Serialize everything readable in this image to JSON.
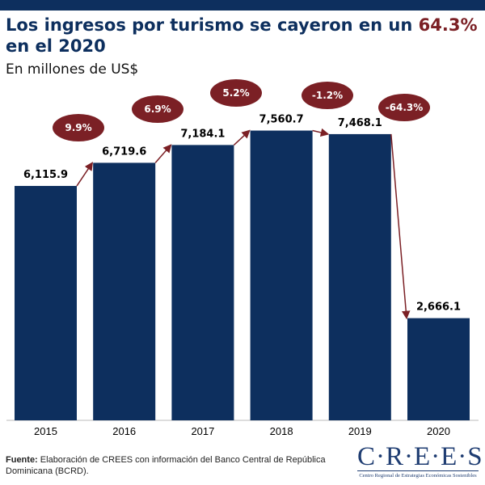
{
  "header": {
    "title_part1": "Los ingresos por turismo se cayeron en un ",
    "title_highlight": "64.3%",
    "title_part2": "en el 2020",
    "subtitle": "En millones de US$"
  },
  "chart_data": {
    "type": "bar",
    "categories": [
      "2015",
      "2016",
      "2017",
      "2018",
      "2019",
      "2020"
    ],
    "values": [
      6115.9,
      6719.6,
      7184.1,
      7560.7,
      7468.1,
      2666.1
    ],
    "value_labels": [
      "6,115.9",
      "6,719.6",
      "7,184.1",
      "7,560.7",
      "7,468.1",
      "2,666.1"
    ],
    "growth_labels": [
      "9.9%",
      "6.9%",
      "5.2%",
      "-1.2%",
      "-64.3%"
    ],
    "ylim": [
      0,
      8500
    ],
    "grid": false,
    "colors": {
      "bar": "#0d2f5e",
      "annotation": "#7b2025",
      "title": "#0d2f5e"
    }
  },
  "footer": {
    "source_label": "Fuente:",
    "source_text": " Elaboración de CREES con información del Banco Central de República Dominicana (BCRD)."
  },
  "logo": {
    "name": "C·R·E·E·S",
    "tagline": "Centro Regional de Estrategias Económicas Sostenibles"
  }
}
